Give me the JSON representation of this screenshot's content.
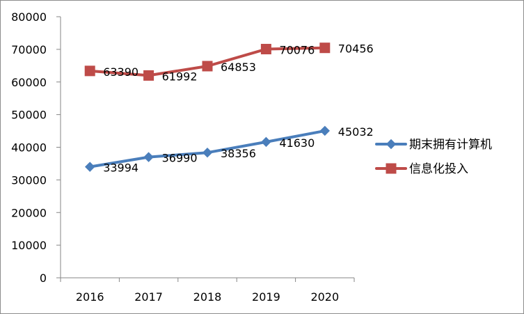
{
  "chart_data": {
    "type": "line",
    "title": "",
    "xlabel": "",
    "ylabel": "",
    "categories": [
      "2016",
      "2017",
      "2018",
      "2019",
      "2020"
    ],
    "ylim": [
      0,
      80000
    ],
    "yticks": [
      "0",
      "10000",
      "20000",
      "30000",
      "40000",
      "50000",
      "60000",
      "70000",
      "80000"
    ],
    "grid": false,
    "legend_position": "right",
    "series": [
      {
        "name": "期末拥有计算机",
        "values": [
          33994,
          36990,
          38356,
          41630,
          45032
        ],
        "labels": [
          "33994",
          "36990",
          "38356",
          "41630",
          "45032"
        ],
        "color": "#4a7ebb",
        "marker": "diamond"
      },
      {
        "name": "信息化投入",
        "values": [
          63390,
          61992,
          64853,
          70076,
          70456
        ],
        "labels": [
          "63390",
          "61992",
          "64853",
          "70076",
          "70456"
        ],
        "color": "#be4b48",
        "marker": "square"
      }
    ]
  }
}
